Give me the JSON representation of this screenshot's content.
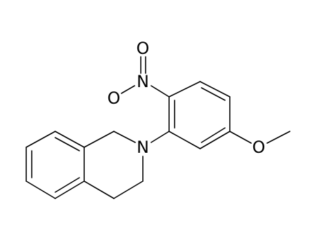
{
  "atoms": [
    {
      "label": "O"
    },
    {
      "label": "N"
    },
    {
      "label": "O"
    },
    {
      "label": "N"
    },
    {
      "label": "O"
    }
  ]
}
